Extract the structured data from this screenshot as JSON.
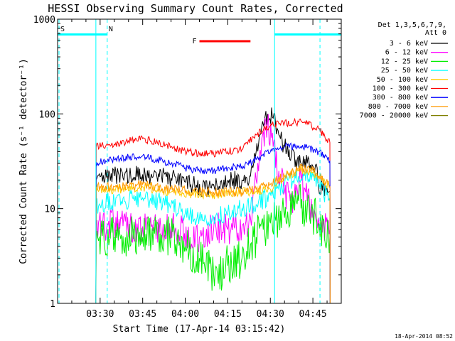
{
  "chart_data": {
    "type": "line",
    "title": "HESSI Observing Summary Count Rates, Corrected",
    "xlabel": "Start Time (17-Apr-14 03:15:42)",
    "ylabel": "Corrected Count Rate (s⁻¹ detector⁻¹)",
    "yscale": "log",
    "ylim": [
      1,
      1000
    ],
    "xlim_minutes": [
      0,
      100
    ],
    "x_tick_minutes": [
      15,
      30,
      45,
      60,
      75,
      90
    ],
    "x_tick_labels": [
      "03:30",
      "03:45",
      "04:00",
      "04:15",
      "04:30",
      "04:45"
    ],
    "y_tick_values": [
      1,
      10,
      100,
      1000
    ],
    "y_tick_labels": [
      "1",
      "10",
      "100",
      "1000"
    ],
    "legend_title": [
      "Det 1,3,5,6,7,9,",
      "Att 0"
    ],
    "legend_position": "right",
    "series": [
      {
        "name": "3 - 6 keV",
        "color": "#000000",
        "x": [
          13.5,
          13.6,
          20,
          30,
          40,
          45,
          52,
          55,
          60,
          65,
          68,
          70,
          72,
          74,
          76,
          78,
          80,
          84,
          88,
          90,
          91.5,
          92,
          96,
          96.1
        ],
        "y": [
          1,
          20,
          22,
          23,
          21,
          19,
          16,
          18,
          20,
          20,
          22,
          40,
          75,
          100,
          90,
          60,
          45,
          33,
          30,
          28,
          27,
          17,
          15,
          1
        ]
      },
      {
        "name": "6 - 12 keV",
        "color": "#ff00ff",
        "x": [
          13.5,
          13.6,
          20,
          30,
          40,
          50,
          55,
          60,
          65,
          68,
          70,
          72,
          74,
          76,
          78,
          80,
          82,
          84,
          86,
          88,
          90,
          92,
          96,
          96.1
        ],
        "y": [
          1,
          6.5,
          7,
          6.5,
          6.5,
          5,
          6,
          6,
          6.5,
          8,
          20,
          55,
          80,
          45,
          25,
          15,
          12,
          14,
          20,
          12,
          10,
          8,
          6,
          1
        ]
      },
      {
        "name": "12 - 25 keV",
        "color": "#00ee00",
        "x": [
          13.5,
          13.6,
          20,
          30,
          40,
          45,
          50,
          55,
          60,
          65,
          70,
          75,
          80,
          83,
          85,
          88,
          90,
          92,
          96,
          96.1
        ],
        "y": [
          1,
          4.5,
          5,
          5,
          5,
          4,
          3,
          2,
          2.5,
          3,
          5,
          7,
          8,
          10,
          12,
          10,
          9,
          7,
          5,
          1
        ]
      },
      {
        "name": "25 - 50 keV",
        "color": "#00ffff",
        "x": [
          13.5,
          13.6,
          20,
          30,
          40,
          45,
          50,
          55,
          60,
          65,
          70,
          75,
          80,
          85,
          88,
          90,
          92,
          96,
          96.1
        ],
        "y": [
          1,
          11,
          12,
          13,
          11,
          9,
          8,
          8,
          9,
          10,
          11,
          14,
          18,
          22,
          24,
          22,
          18,
          12,
          1
        ]
      },
      {
        "name": "50 - 100 keV",
        "color": "#ffcc00",
        "x": [
          13.5,
          13.6,
          20,
          30,
          40,
          50,
          55,
          60,
          65,
          70,
          75,
          80,
          85,
          88,
          90,
          92,
          96,
          96.1
        ],
        "y": [
          1,
          16,
          16,
          17,
          15,
          14,
          14,
          15,
          15,
          15,
          16,
          22,
          25,
          26,
          24,
          21,
          17,
          1
        ]
      },
      {
        "name": "100 - 300 keV",
        "color": "#ff0000",
        "x": [
          13.5,
          13.6,
          20,
          25,
          30,
          40,
          45,
          50,
          55,
          60,
          65,
          70,
          75,
          80,
          85,
          88,
          92,
          96,
          96.1
        ],
        "y": [
          1,
          45,
          48,
          52,
          55,
          45,
          40,
          38,
          38,
          40,
          42,
          60,
          75,
          80,
          82,
          78,
          70,
          50,
          1
        ]
      },
      {
        "name": "300 - 800 keV",
        "color": "#0000ff",
        "x": [
          13.5,
          13.6,
          20,
          25,
          30,
          40,
          45,
          50,
          55,
          60,
          65,
          70,
          75,
          80,
          85,
          88,
          92,
          96,
          96.1
        ],
        "y": [
          1,
          31,
          33,
          35,
          36,
          30,
          27,
          25,
          25,
          27,
          28,
          33,
          40,
          45,
          46,
          44,
          40,
          32,
          1
        ]
      },
      {
        "name": "800 - 7000 keV",
        "color": "#ff9900",
        "x": [
          13.5,
          13.6,
          20,
          30,
          40,
          50,
          55,
          60,
          65,
          70,
          75,
          80,
          85,
          88,
          90,
          92,
          96,
          96.1
        ],
        "y": [
          1,
          17,
          17,
          18,
          16,
          15,
          15,
          15,
          15,
          16,
          18,
          22,
          26,
          27,
          25,
          22,
          17,
          1
        ]
      },
      {
        "name": "7000 - 20000 keV",
        "color": "#808000",
        "x": [],
        "y": []
      }
    ],
    "annotations": [
      {
        "label": "S",
        "color": "#ff9900",
        "x": 0.5
      },
      {
        "label": "N",
        "color": "#00ffff",
        "x": 17.5
      },
      {
        "label": "F",
        "color": "#ff0000",
        "x_start": 50,
        "x_end": 68
      }
    ],
    "night_intervals": [
      [
        0,
        17.5
      ],
      [
        76.5,
        100
      ]
    ],
    "flag_level_y": 690,
    "timestamp": "18-Apr-2014 08:52"
  }
}
